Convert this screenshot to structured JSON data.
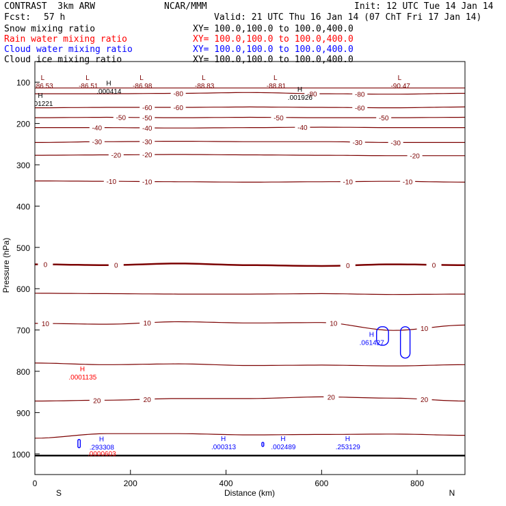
{
  "header": {
    "model": "CONTRAST  3km ARW",
    "org": "NCAR/MMM",
    "init": "Init: 12 UTC Tue 14 Jan 14",
    "fcst_label": "Fcst:",
    "fcst_value": "57 h",
    "valid": "Valid: 21 UTC Thu 16 Jan 14 (07 ChT Fri 17 Jan 14)"
  },
  "fields": [
    {
      "name": "Snow mixing ratio",
      "xy": "XY= 100.0,100.0 to 100.0,400.0",
      "color": "#000000"
    },
    {
      "name": "Rain water mixing ratio",
      "xy": "XY= 100.0,100.0 to 100.0,400.0",
      "color": "#ff0000"
    },
    {
      "name": "Cloud water mixing ratio",
      "xy": "XY= 100.0,100.0 to 100.0,400.0",
      "color": "#0000ff"
    },
    {
      "name": "Cloud ice mixing ratio",
      "xy": "XY= 100.0,100.0 to 100.0,400.0",
      "color": "#000000"
    }
  ],
  "chart_data": {
    "type": "contour",
    "xlabel": "Distance (km)",
    "ylabel": "Pressure (hPa)",
    "xlim": [
      0,
      900
    ],
    "ylim": [
      1050,
      50
    ],
    "x_ticks": [
      0,
      200,
      400,
      600,
      800
    ],
    "y_ticks": [
      100,
      200,
      300,
      400,
      500,
      600,
      700,
      800,
      900,
      1000
    ],
    "x_end_labels": [
      "S",
      "N"
    ],
    "temperature_color": "#7b0000",
    "cloud_color": "#0000ff",
    "temperature_contours": [
      {
        "pressure": [
          114,
          114,
          114,
          114,
          114,
          114,
          114
        ]
      },
      {
        "label": "-80",
        "pressure": [
          128,
          128,
          127,
          125,
          128,
          129,
          127
        ],
        "label_x": [
          300,
          580,
          680
        ]
      },
      {
        "label": "-60",
        "pressure": [
          162,
          161,
          161,
          160,
          161,
          162,
          160
        ],
        "label_x": [
          235,
          300,
          680
        ]
      },
      {
        "label": "-50",
        "pressure": [
          186,
          185,
          186,
          185,
          186,
          186,
          185
        ],
        "label_x": [
          180,
          235,
          510,
          730
        ]
      },
      {
        "label": "-40",
        "pressure": [
          210,
          210,
          211,
          210,
          209,
          210,
          210
        ],
        "label_x": [
          130,
          235,
          560
        ]
      },
      {
        "label": "-30",
        "pressure": [
          246,
          244,
          243,
          244,
          244,
          246,
          246
        ],
        "label_x": [
          130,
          235,
          675,
          755
        ]
      },
      {
        "label": "-20",
        "pressure": [
          277,
          276,
          275,
          276,
          277,
          278,
          278
        ],
        "label_x": [
          170,
          235,
          795
        ]
      },
      {
        "label": "-10",
        "pressure": [
          339,
          340,
          341,
          342,
          341,
          340,
          342
        ],
        "label_x": [
          160,
          235,
          655,
          780
        ]
      },
      {
        "label": "0",
        "pressure": [
          541,
          543,
          539,
          543,
          545,
          541,
          543
        ],
        "label_x": [
          22,
          170,
          655,
          835
        ]
      },
      {
        "pressure": [
          611,
          612,
          613,
          613,
          612,
          614,
          613
        ]
      },
      {
        "label": "10",
        "pressure": [
          684,
          686,
          680,
          683,
          682,
          701,
          688
        ],
        "label_x": [
          22,
          235,
          625,
          815
        ]
      },
      {
        "pressure": [
          780,
          784,
          782,
          786,
          785,
          787,
          784
        ]
      },
      {
        "label": "20",
        "pressure": [
          872,
          870,
          866,
          866,
          862,
          865,
          872
        ],
        "label_x": [
          130,
          235,
          620,
          815
        ]
      },
      {
        "pressure": [
          962,
          951,
          951,
          954,
          953,
          952,
          955
        ]
      }
    ],
    "markers": [
      {
        "kind": "L",
        "value": "-86.53",
        "x": 18,
        "p": 108,
        "color": "#7b0000"
      },
      {
        "kind": "L",
        "value": "-86.51",
        "x": 112,
        "p": 108,
        "color": "#7b0000"
      },
      {
        "kind": "L",
        "value": "-86.98",
        "x": 225,
        "p": 108,
        "color": "#7b0000"
      },
      {
        "kind": "L",
        "value": "-88.83",
        "x": 355,
        "p": 108,
        "color": "#7b0000"
      },
      {
        "kind": "L",
        "value": "-88.81",
        "x": 505,
        "p": 108,
        "color": "#7b0000"
      },
      {
        "kind": "L",
        "value": "-90.47",
        "x": 765,
        "p": 108,
        "color": "#7b0000"
      },
      {
        "kind": "H",
        "value": ".000414",
        "x": 155,
        "p": 121,
        "color": "#000000"
      },
      {
        "kind": "H",
        "value": ".001221",
        "x": 12,
        "p": 151,
        "color": "#000000"
      },
      {
        "kind": "H",
        "value": ".001926",
        "x": 555,
        "p": 136,
        "color": "#000000"
      },
      {
        "kind": "H",
        "value": ".061427",
        "x": 705,
        "p": 730,
        "color": "#0000ff"
      },
      {
        "kind": "H",
        "value": ".0001135",
        "x": 100,
        "p": 813,
        "color": "#ff0000"
      },
      {
        "kind": "H",
        "value": ".293308",
        "x": 140,
        "p": 983,
        "color": "#0000ff"
      },
      {
        "kind": "",
        "value": ".0000603",
        "x": 140,
        "p": 999,
        "color": "#ff0000"
      },
      {
        "kind": "H",
        "value": ".000313",
        "x": 395,
        "p": 982,
        "color": "#0000ff"
      },
      {
        "kind": "H",
        "value": ".002489",
        "x": 520,
        "p": 982,
        "color": "#0000ff"
      },
      {
        "kind": "H",
        "value": ".253129",
        "x": 655,
        "p": 982,
        "color": "#0000ff"
      }
    ],
    "cloud_blobs": [
      {
        "x": [
          715,
          740
        ],
        "p": [
          692,
          737
        ]
      },
      {
        "x": [
          765,
          785
        ],
        "p": [
          692,
          768
        ]
      },
      {
        "x": [
          90,
          95
        ],
        "p": [
          965,
          985
        ]
      },
      {
        "x": [
          475,
          479
        ],
        "p": [
          972,
          982
        ]
      }
    ],
    "surface_pressure": 1004
  }
}
